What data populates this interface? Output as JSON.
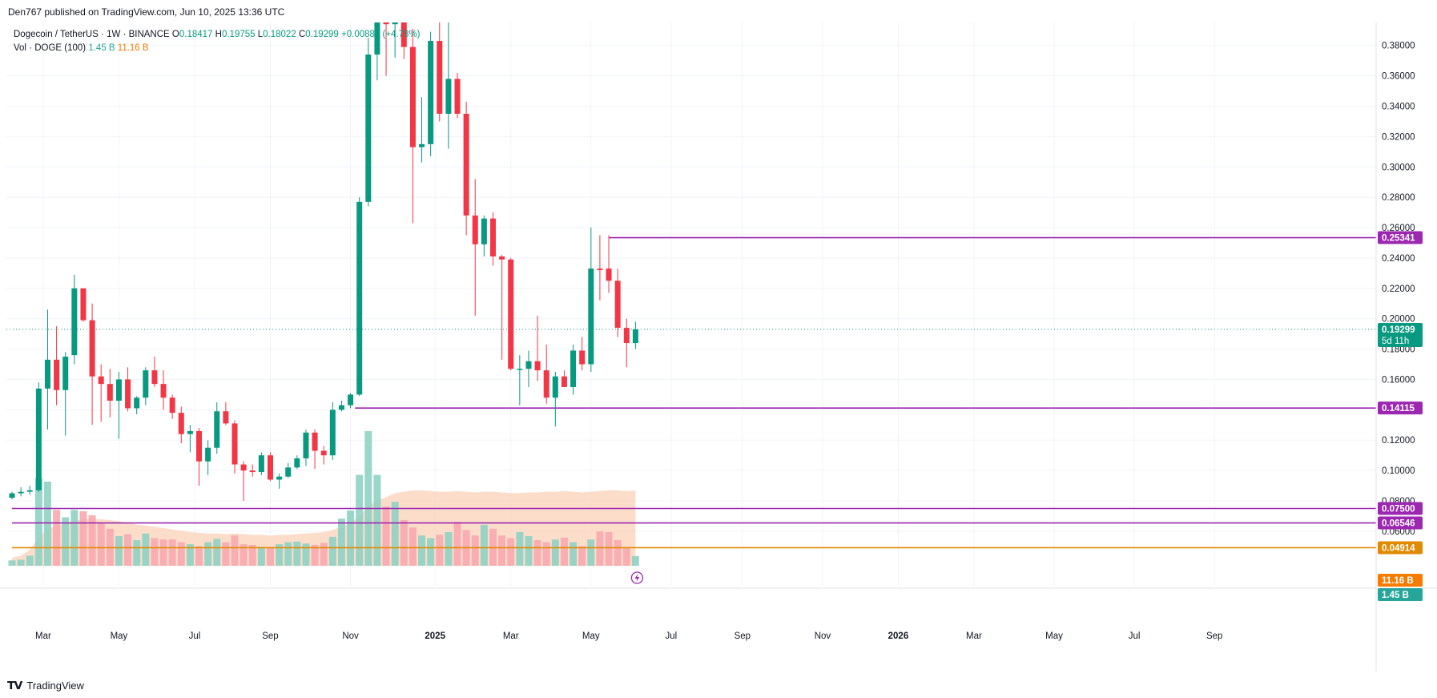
{
  "header": {
    "published_by": "Den767 published on TradingView.com, Jun 10, 2025 13:36 UTC"
  },
  "legend": {
    "symbol": "Dogecoin / TetherUS · 1W · BINANCE",
    "open_label": "O",
    "open": "0.18417",
    "high_label": "H",
    "high": "0.19755",
    "low_label": "L",
    "low": "0.18022",
    "close_label": "C",
    "close": "0.19299",
    "change": "+0.00881 (+4.78%)",
    "volume_label": "Vol · DOGE (100)",
    "volume_value": "1.45 B",
    "volume_ma": "11.16 B"
  },
  "footer": {
    "brand": "TradingView"
  },
  "colors": {
    "up": "#089981",
    "down": "#f23645",
    "vol_up": "#8fd1c4",
    "vol_down": "#f7a9af",
    "vol_area": "#fbcfb3",
    "level": "#9c27b0",
    "orange_level": "#e08a00",
    "grid": "#f0f3fa"
  },
  "chart_data": {
    "type": "candlestick",
    "title": "Dogecoin / TetherUS · 1W · BINANCE",
    "price_axis": {
      "ticks": [
        0.06,
        0.08,
        0.1,
        0.12,
        0.14,
        0.16,
        0.18,
        0.2,
        0.22,
        0.24,
        0.26,
        0.28,
        0.3,
        0.32,
        0.34,
        0.36,
        0.38
      ],
      "range": [
        0.042,
        0.392
      ]
    },
    "time_axis": {
      "labels": [
        "Mar",
        "May",
        "Jul",
        "Sep",
        "Nov",
        "2025",
        "Mar",
        "May",
        "Jul",
        "Sep",
        "Nov",
        "2026",
        "Mar",
        "May",
        "Jul",
        "Sep"
      ],
      "label_bar_index": [
        3.5,
        12,
        20.5,
        29,
        38,
        47.5,
        56,
        65,
        74,
        82,
        91,
        99.5,
        108,
        117,
        126,
        135
      ]
    },
    "candles": [
      {
        "o": 0.082,
        "h": 0.086,
        "l": 0.081,
        "c": 0.085
      },
      {
        "o": 0.085,
        "h": 0.089,
        "l": 0.083,
        "c": 0.086
      },
      {
        "o": 0.086,
        "h": 0.09,
        "l": 0.084,
        "c": 0.087
      },
      {
        "o": 0.087,
        "h": 0.158,
        "l": 0.086,
        "c": 0.154
      },
      {
        "o": 0.154,
        "h": 0.206,
        "l": 0.127,
        "c": 0.173
      },
      {
        "o": 0.173,
        "h": 0.195,
        "l": 0.143,
        "c": 0.153
      },
      {
        "o": 0.153,
        "h": 0.178,
        "l": 0.123,
        "c": 0.175
      },
      {
        "o": 0.176,
        "h": 0.229,
        "l": 0.17,
        "c": 0.22
      },
      {
        "o": 0.22,
        "h": 0.219,
        "l": 0.198,
        "c": 0.199
      },
      {
        "o": 0.199,
        "h": 0.21,
        "l": 0.13,
        "c": 0.162
      },
      {
        "o": 0.162,
        "h": 0.17,
        "l": 0.132,
        "c": 0.157
      },
      {
        "o": 0.157,
        "h": 0.167,
        "l": 0.135,
        "c": 0.146
      },
      {
        "o": 0.146,
        "h": 0.165,
        "l": 0.121,
        "c": 0.16
      },
      {
        "o": 0.16,
        "h": 0.168,
        "l": 0.139,
        "c": 0.141
      },
      {
        "o": 0.141,
        "h": 0.149,
        "l": 0.137,
        "c": 0.148
      },
      {
        "o": 0.148,
        "h": 0.168,
        "l": 0.143,
        "c": 0.166
      },
      {
        "o": 0.166,
        "h": 0.175,
        "l": 0.155,
        "c": 0.157
      },
      {
        "o": 0.157,
        "h": 0.166,
        "l": 0.14,
        "c": 0.148
      },
      {
        "o": 0.148,
        "h": 0.15,
        "l": 0.134,
        "c": 0.138
      },
      {
        "o": 0.138,
        "h": 0.142,
        "l": 0.118,
        "c": 0.124
      },
      {
        "o": 0.124,
        "h": 0.13,
        "l": 0.112,
        "c": 0.126
      },
      {
        "o": 0.126,
        "h": 0.128,
        "l": 0.09,
        "c": 0.106
      },
      {
        "o": 0.106,
        "h": 0.12,
        "l": 0.097,
        "c": 0.115
      },
      {
        "o": 0.115,
        "h": 0.145,
        "l": 0.111,
        "c": 0.139
      },
      {
        "o": 0.139,
        "h": 0.145,
        "l": 0.13,
        "c": 0.131
      },
      {
        "o": 0.131,
        "h": 0.133,
        "l": 0.098,
        "c": 0.104
      },
      {
        "o": 0.104,
        "h": 0.106,
        "l": 0.08,
        "c": 0.1
      },
      {
        "o": 0.1,
        "h": 0.104,
        "l": 0.096,
        "c": 0.099
      },
      {
        "o": 0.099,
        "h": 0.112,
        "l": 0.097,
        "c": 0.11
      },
      {
        "o": 0.11,
        "h": 0.112,
        "l": 0.093,
        "c": 0.094
      },
      {
        "o": 0.094,
        "h": 0.098,
        "l": 0.088,
        "c": 0.096
      },
      {
        "o": 0.096,
        "h": 0.105,
        "l": 0.095,
        "c": 0.102
      },
      {
        "o": 0.102,
        "h": 0.11,
        "l": 0.101,
        "c": 0.108
      },
      {
        "o": 0.108,
        "h": 0.127,
        "l": 0.103,
        "c": 0.125
      },
      {
        "o": 0.125,
        "h": 0.127,
        "l": 0.101,
        "c": 0.113
      },
      {
        "o": 0.113,
        "h": 0.116,
        "l": 0.104,
        "c": 0.11
      },
      {
        "o": 0.11,
        "h": 0.145,
        "l": 0.107,
        "c": 0.14
      },
      {
        "o": 0.14,
        "h": 0.146,
        "l": 0.139,
        "c": 0.143
      },
      {
        "o": 0.143,
        "h": 0.151,
        "l": 0.141,
        "c": 0.15
      },
      {
        "o": 0.15,
        "h": 0.28,
        "l": 0.149,
        "c": 0.277
      },
      {
        "o": 0.277,
        "h": 0.385,
        "l": 0.274,
        "c": 0.374
      },
      {
        "o": 0.374,
        "h": 0.431,
        "l": 0.357,
        "c": 0.396
      },
      {
        "o": 0.396,
        "h": 0.449,
        "l": 0.36,
        "c": 0.394
      },
      {
        "o": 0.394,
        "h": 0.479,
        "l": 0.372,
        "c": 0.412
      },
      {
        "o": 0.412,
        "h": 0.442,
        "l": 0.371,
        "c": 0.379
      },
      {
        "o": 0.379,
        "h": 0.391,
        "l": 0.263,
        "c": 0.313
      },
      {
        "o": 0.313,
        "h": 0.346,
        "l": 0.303,
        "c": 0.315
      },
      {
        "o": 0.315,
        "h": 0.389,
        "l": 0.307,
        "c": 0.383
      },
      {
        "o": 0.383,
        "h": 0.42,
        "l": 0.33,
        "c": 0.335
      },
      {
        "o": 0.335,
        "h": 0.402,
        "l": 0.312,
        "c": 0.358
      },
      {
        "o": 0.358,
        "h": 0.362,
        "l": 0.332,
        "c": 0.335
      },
      {
        "o": 0.335,
        "h": 0.343,
        "l": 0.255,
        "c": 0.268
      },
      {
        "o": 0.268,
        "h": 0.292,
        "l": 0.202,
        "c": 0.249
      },
      {
        "o": 0.249,
        "h": 0.268,
        "l": 0.241,
        "c": 0.266
      },
      {
        "o": 0.266,
        "h": 0.27,
        "l": 0.235,
        "c": 0.241
      },
      {
        "o": 0.241,
        "h": 0.242,
        "l": 0.173,
        "c": 0.239
      },
      {
        "o": 0.239,
        "h": 0.24,
        "l": 0.166,
        "c": 0.167
      },
      {
        "o": 0.167,
        "h": 0.176,
        "l": 0.143,
        "c": 0.167
      },
      {
        "o": 0.167,
        "h": 0.179,
        "l": 0.155,
        "c": 0.172
      },
      {
        "o": 0.172,
        "h": 0.202,
        "l": 0.159,
        "c": 0.166
      },
      {
        "o": 0.166,
        "h": 0.183,
        "l": 0.144,
        "c": 0.148
      },
      {
        "o": 0.148,
        "h": 0.165,
        "l": 0.129,
        "c": 0.162
      },
      {
        "o": 0.162,
        "h": 0.166,
        "l": 0.155,
        "c": 0.155
      },
      {
        "o": 0.155,
        "h": 0.183,
        "l": 0.15,
        "c": 0.179
      },
      {
        "o": 0.179,
        "h": 0.188,
        "l": 0.166,
        "c": 0.17
      },
      {
        "o": 0.17,
        "h": 0.26,
        "l": 0.165,
        "c": 0.233
      },
      {
        "o": 0.233,
        "h": 0.255,
        "l": 0.212,
        "c": 0.232
      },
      {
        "o": 0.233,
        "h": 0.255,
        "l": 0.217,
        "c": 0.225
      },
      {
        "o": 0.225,
        "h": 0.233,
        "l": 0.188,
        "c": 0.194
      },
      {
        "o": 0.194,
        "h": 0.2,
        "l": 0.168,
        "c": 0.184
      },
      {
        "o": 0.184,
        "h": 0.198,
        "l": 0.18,
        "c": 0.193
      }
    ],
    "volume": [
      0.8,
      0.9,
      1.5,
      13.0,
      12.5,
      8.3,
      7.2,
      8.3,
      8.1,
      7.5,
      6.3,
      5.5,
      4.4,
      4.7,
      3.8,
      4.8,
      4.1,
      3.9,
      3.9,
      3.5,
      3.2,
      2.9,
      3.5,
      4.0,
      3.5,
      4.5,
      3.2,
      3.1,
      2.8,
      2.6,
      3.2,
      3.5,
      3.6,
      3.3,
      3.1,
      3.4,
      4.3,
      7.0,
      8.2,
      13.5,
      20.0,
      13.5,
      8.8,
      9.5,
      6.8,
      5.7,
      4.5,
      4.1,
      4.6,
      5.0,
      6.5,
      5.3,
      4.5,
      6.1,
      5.5,
      4.5,
      4.1,
      5.0,
      4.4,
      3.8,
      3.5,
      3.9,
      4.2,
      3.5,
      2.9,
      3.9,
      5.1,
      5.0,
      3.8,
      2.6,
      1.45
    ],
    "volume_ma": [
      1.2,
      1.5,
      2.4,
      4.2,
      5.4,
      6.0,
      6.3,
      6.7,
      6.9,
      7.0,
      6.9,
      6.8,
      6.6,
      6.4,
      6.1,
      6.0,
      5.8,
      5.6,
      5.4,
      5.2,
      5.0,
      4.9,
      4.8,
      4.8,
      4.7,
      4.8,
      4.7,
      4.6,
      4.6,
      4.5,
      4.6,
      4.6,
      4.7,
      4.8,
      4.9,
      5.0,
      5.3,
      5.8,
      6.4,
      7.4,
      8.8,
      9.7,
      10.2,
      10.8,
      11.0,
      11.2,
      11.2,
      11.1,
      11.0,
      11.0,
      11.1,
      11.0,
      10.9,
      11.0,
      11.0,
      10.9,
      10.8,
      10.8,
      10.9,
      10.9,
      11.0,
      11.0,
      11.1,
      11.0,
      10.9,
      11.0,
      11.1,
      11.2,
      11.2,
      11.1,
      11.16
    ],
    "horizontal_levels": [
      {
        "price": 0.25341,
        "label": "0.25341",
        "color": "#9c27b0",
        "start_bar": 67
      },
      {
        "price": 0.14115,
        "label": "0.14115",
        "color": "#9c27b0",
        "start_bar": 38.5
      },
      {
        "price": 0.075,
        "label": "0.07500",
        "color": "#9c27b0",
        "start_bar": 0
      },
      {
        "price": 0.06546,
        "label": "0.06546",
        "color": "#9c27b0",
        "start_bar": 0
      },
      {
        "price": 0.04914,
        "label": "0.04914",
        "color": "#e08a00",
        "start_bar": 0
      }
    ],
    "last_price": {
      "value": 0.19299,
      "label": "0.19299",
      "countdown": "5d 11h"
    },
    "axis_badges": [
      {
        "label": "11.16 B",
        "color": "#f57c00"
      },
      {
        "label": "1.45 B",
        "color": "#26a69a"
      }
    ]
  }
}
